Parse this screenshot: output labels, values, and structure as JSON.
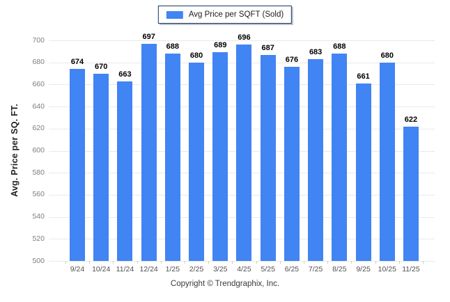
{
  "legend": {
    "label": "Avg Price per SQFT (Sold)",
    "swatch_color": "#4184F3",
    "border_color": "#17375E"
  },
  "footer": {
    "text": "Copyright © Trendgraphix, Inc."
  },
  "chart_data": {
    "type": "bar",
    "title": "",
    "categories": [
      "9/24",
      "10/24",
      "11/24",
      "12/24",
      "1/25",
      "2/25",
      "3/25",
      "4/25",
      "5/25",
      "6/25",
      "7/25",
      "8/25",
      "9/25",
      "10/25",
      "11/25"
    ],
    "values": [
      674,
      670,
      663,
      697,
      688,
      680,
      689,
      696,
      687,
      676,
      683,
      688,
      661,
      680,
      622
    ],
    "series": [
      {
        "name": "Avg Price per SQFT (Sold)",
        "values": [
          674,
          670,
          663,
          697,
          688,
          680,
          689,
          696,
          687,
          676,
          683,
          688,
          661,
          680,
          622
        ]
      }
    ],
    "bar_color": "#4184F3",
    "value_labels": true,
    "xlabel": "",
    "ylabel": "Avg. Price per SQ. FT.",
    "ylim": [
      500,
      700
    ],
    "ytick_step": 20,
    "yticks": [
      500,
      520,
      540,
      560,
      580,
      600,
      620,
      640,
      660,
      680,
      700
    ],
    "grid": "horizontal",
    "gridline_color": "#e9e9e9",
    "legend_position": "top"
  }
}
